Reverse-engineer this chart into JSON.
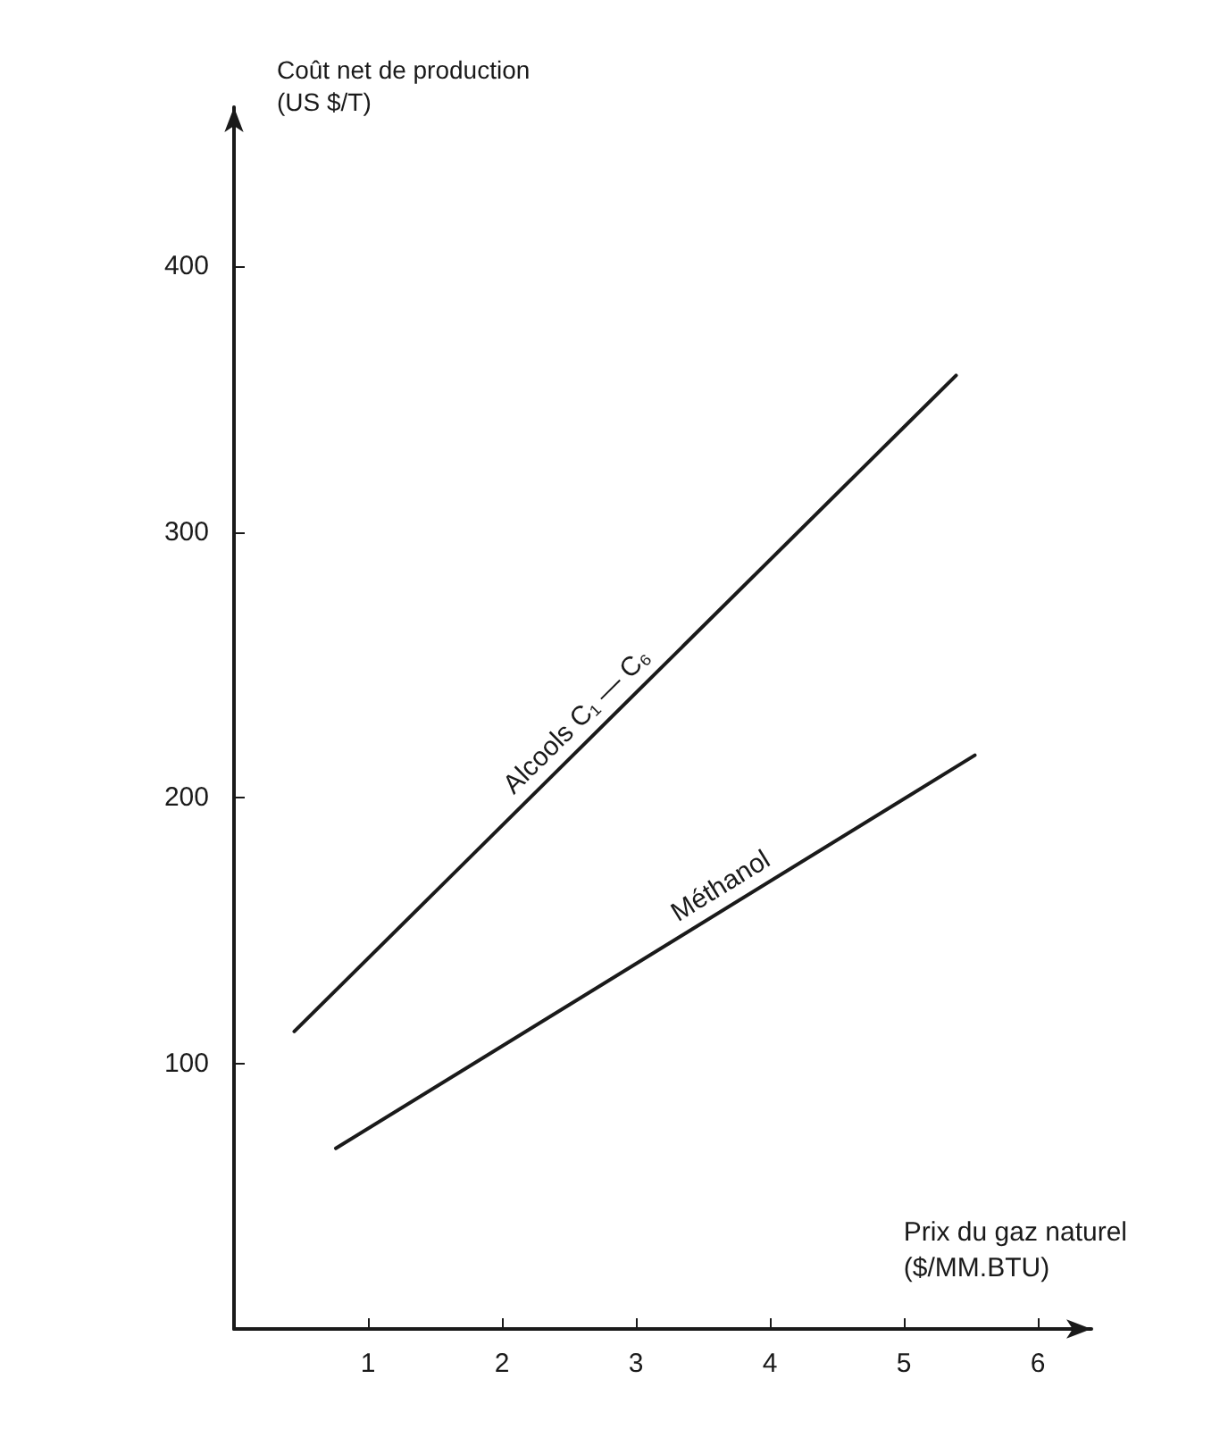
{
  "chart_data": {
    "type": "line",
    "xlabel": "Prix du gaz naturel\n($/MM.BTU)",
    "ylabel": "Coût net de production\n(US $/T)",
    "xlim": [
      0,
      6.4
    ],
    "xticks": [
      1,
      2,
      3,
      4,
      5,
      6
    ],
    "ylim": [
      0,
      460
    ],
    "yticks": [
      100,
      200,
      300,
      400
    ],
    "grid": false,
    "legend": false,
    "marker": "none",
    "line_style": "solid",
    "series": [
      {
        "name": "Alcools C₁ — C₆",
        "color": "#1a1a1a",
        "x": [
          0.45,
          5.39
        ],
        "values": [
          112,
          359
        ]
      },
      {
        "name": "Méthanol",
        "color": "#1a1a1a",
        "x": [
          0.76,
          5.53
        ],
        "values": [
          68,
          216
        ]
      }
    ]
  }
}
